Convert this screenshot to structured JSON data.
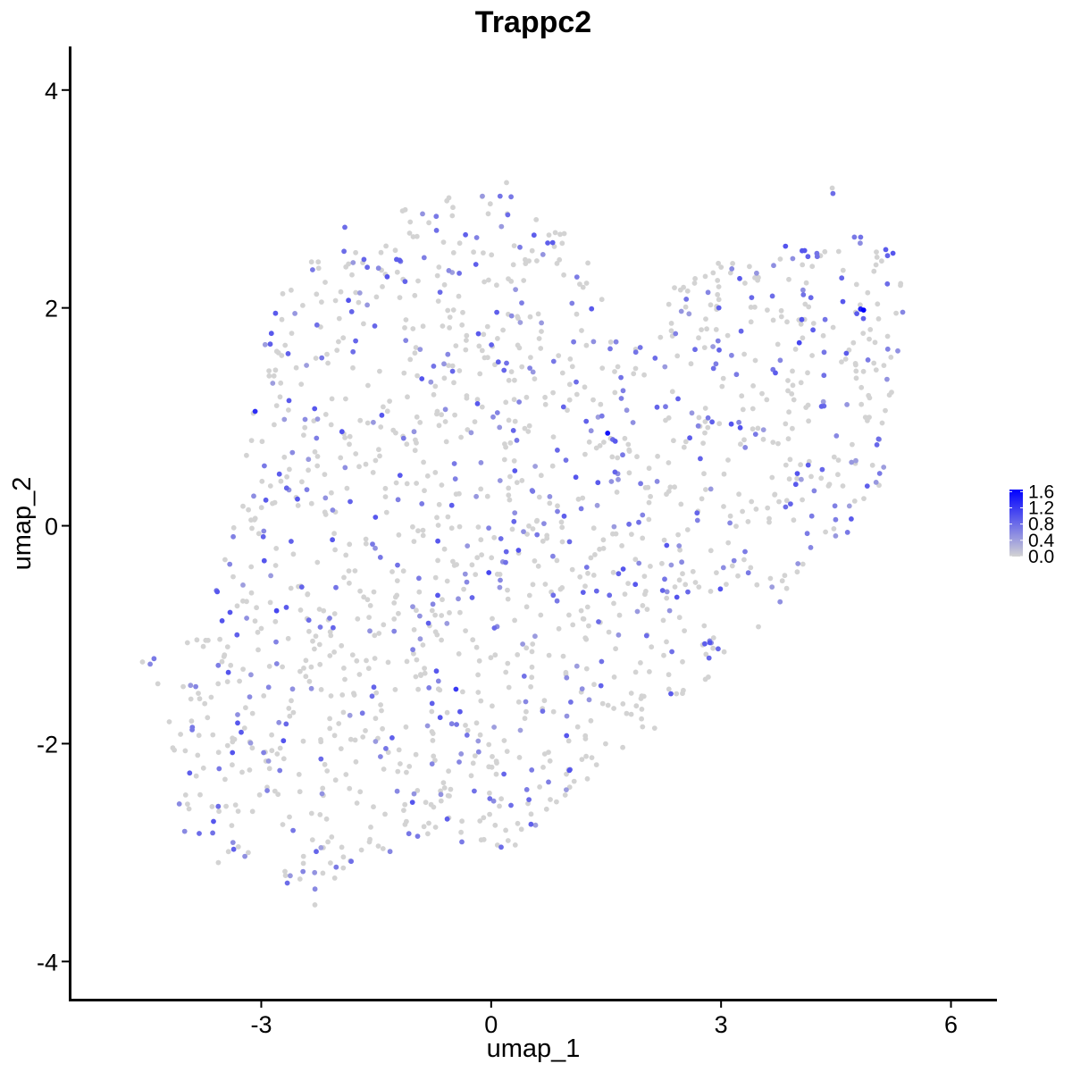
{
  "chart_data": {
    "type": "scatter",
    "title": "Trappc2",
    "xlabel": "umap_1",
    "ylabel": "umap_2",
    "xlim": [
      -5.5,
      6.6
    ],
    "ylim": [
      -4.35,
      4.4
    ],
    "x_ticks": [
      "-3",
      "0",
      "3",
      "6"
    ],
    "y_ticks": [
      "4",
      "2",
      "0",
      "-2",
      "-4"
    ],
    "grid": false,
    "legend": {
      "placement": "right",
      "type": "colorbar",
      "labels": [
        "1.6",
        "1.2",
        "0.8",
        "0.4",
        "0.0"
      ],
      "min": 0.0,
      "max": 1.65
    },
    "colors": {
      "low": "#d3d3d3",
      "high": "#0000ff"
    },
    "n_cells": 1600,
    "series": [
      {
        "points": [
          [
            -3.08,
            1.05,
            1.3
          ],
          [
            1.52,
            0.85,
            1.5
          ],
          [
            4.86,
            1.98,
            1.65
          ],
          [
            4.82,
            1.99,
            1.4
          ],
          [
            -0.03,
            -0.43,
            1.1
          ],
          [
            -0.46,
            -1.5,
            1.2
          ],
          [
            -2.8,
            -0.78,
            1.1
          ],
          [
            0.26,
            3.02,
            0.7
          ],
          [
            4.46,
            3.05,
            0.8
          ],
          [
            -1.91,
            2.74,
            0.8
          ],
          [
            -2.65,
            1.58,
            0.9
          ],
          [
            4.02,
            1.68,
            1.1
          ],
          [
            3.25,
            0.9,
            1.0
          ],
          [
            -2.33,
            2.35,
            0.7
          ],
          [
            -1.92,
            2.52,
            0.8
          ],
          [
            0.13,
            -2.95,
            0.8
          ],
          [
            -3.36,
            -2.97,
            0.9
          ],
          [
            -2.66,
            -3.28,
            0.8
          ],
          [
            5.17,
            2.22,
            0.8
          ],
          [
            4.74,
            2.65,
            0.7
          ],
          [
            -0.48,
            0.57,
            0.7
          ],
          [
            -0.96,
            -2.85,
            0.7
          ],
          [
            0.52,
            -2.74,
            0.9
          ],
          [
            1.11,
            1.32,
            0.8
          ],
          [
            2.83,
            0.99,
            0.7
          ],
          [
            -4.45,
            -1.27,
            0.6
          ],
          [
            -4.4,
            -1.22,
            0.7
          ],
          [
            -3.9,
            -1.85,
            0.7
          ],
          [
            -3.55,
            -2.23,
            0.7
          ],
          [
            -1.32,
            -2.99,
            0.6
          ],
          [
            -2.96,
            0.55,
            0.7
          ],
          [
            -0.76,
            -0.72,
            0.6
          ],
          [
            0.86,
            -0.69,
            0.7
          ],
          [
            3.45,
            0.84,
            0.7
          ],
          [
            4.17,
            -0.2,
            0.6
          ],
          [
            4.65,
            -0.06,
            0.7
          ],
          [
            5.37,
            1.96,
            0.6
          ],
          [
            5.07,
            0.48,
            0.7
          ],
          [
            -2.23,
            -0.93,
            0.7
          ],
          [
            -1.68,
            -1.72,
            0.7
          ]
        ]
      }
    ]
  }
}
